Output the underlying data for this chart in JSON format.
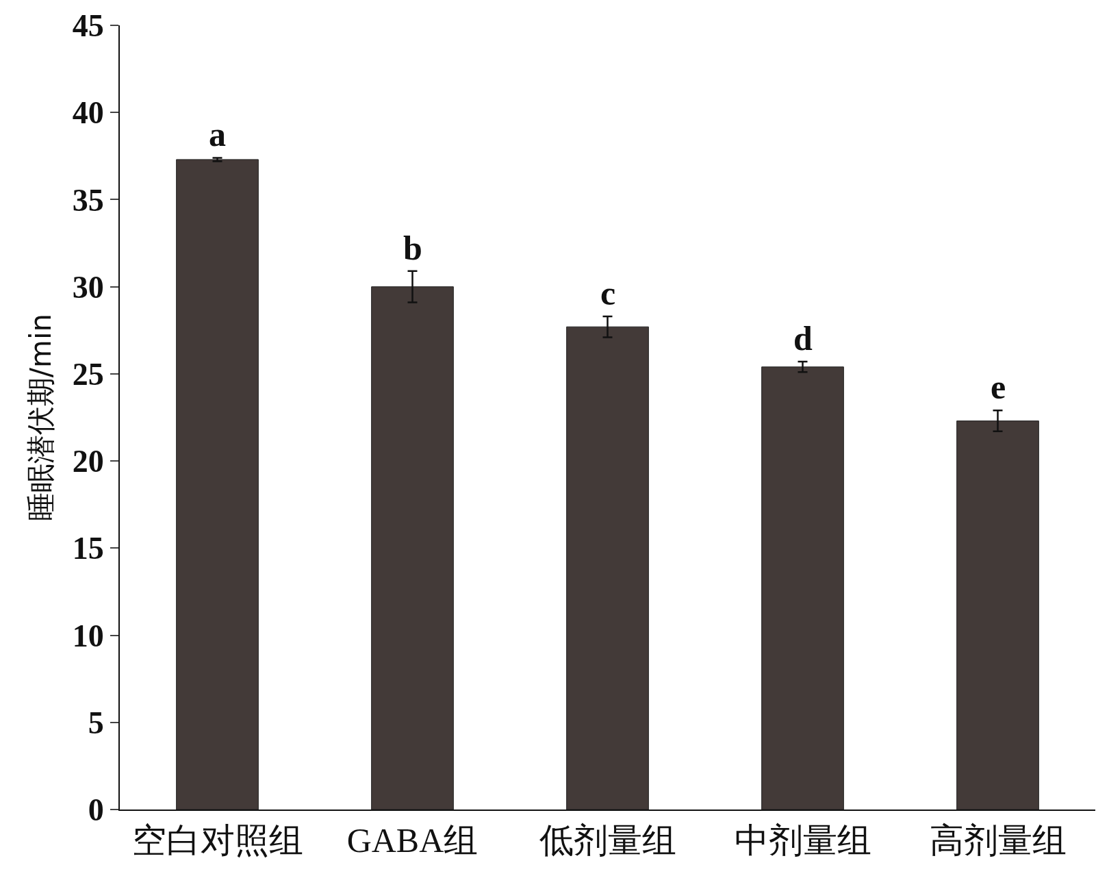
{
  "chart_data": {
    "type": "bar",
    "ylabel": "睡眠潜伏期/min",
    "categories": [
      "空白对照组",
      "GABA组",
      "低剂量组",
      "中剂量组",
      "高剂量组"
    ],
    "values": [
      37.3,
      30.0,
      27.7,
      25.4,
      22.3
    ],
    "errors": [
      0.1,
      0.9,
      0.6,
      0.3,
      0.6
    ],
    "color": "#433a38",
    "ylim": [
      0,
      45
    ],
    "yticks": [
      0,
      5,
      10,
      15,
      20,
      25,
      30,
      35,
      40,
      45
    ],
    "grid": false,
    "annotations": [
      "a",
      "b",
      "c",
      "d",
      "e"
    ]
  }
}
